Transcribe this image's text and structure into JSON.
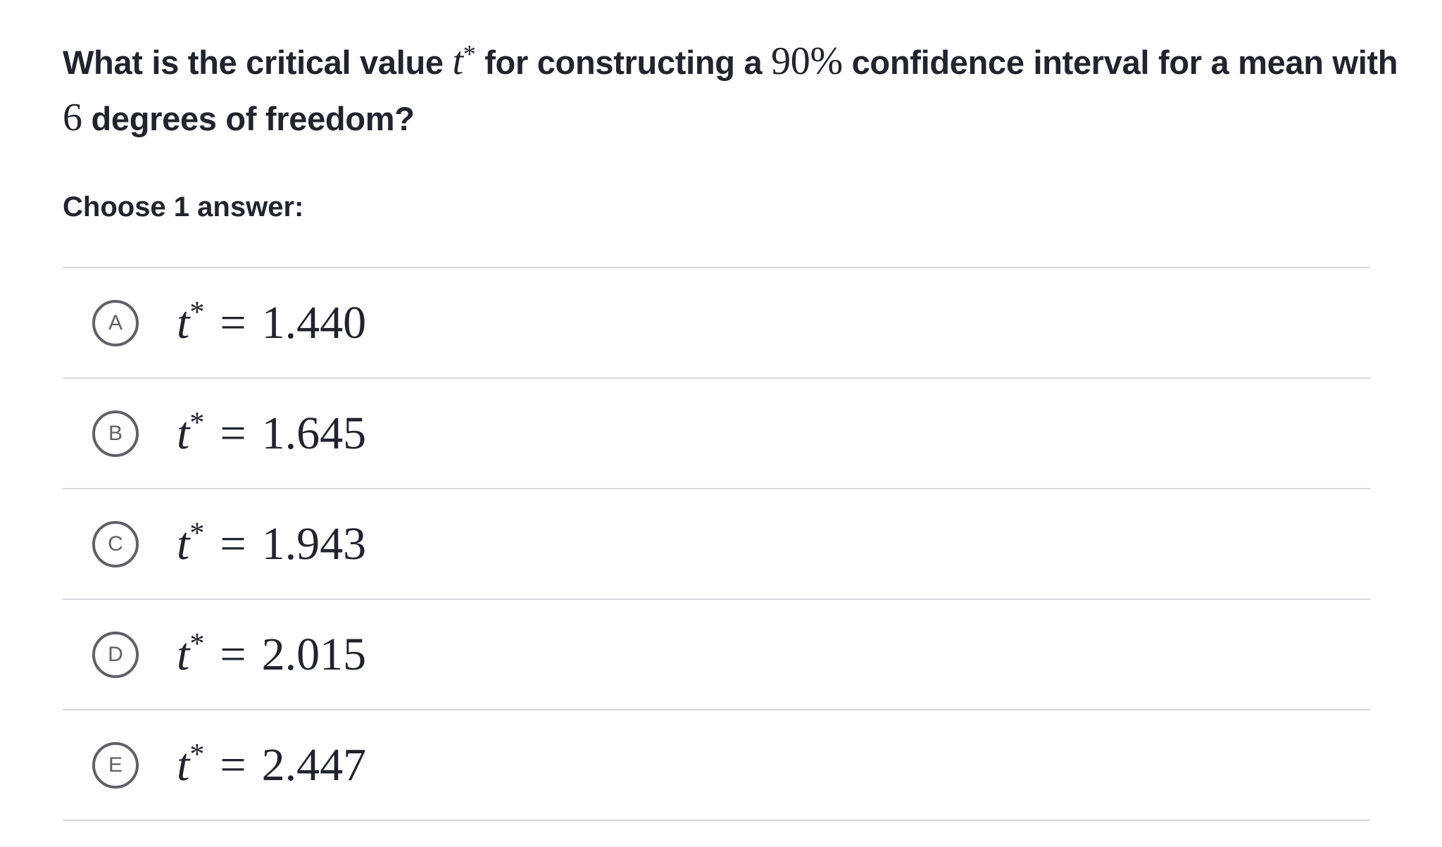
{
  "question": {
    "segments": [
      {
        "kind": "text",
        "content": "What is the critical value "
      },
      {
        "kind": "math",
        "content": "t"
      },
      {
        "kind": "sup",
        "content": "*"
      },
      {
        "kind": "text",
        "content": " for constructing a "
      },
      {
        "kind": "mathup",
        "content": "90%"
      },
      {
        "kind": "text",
        "content": " confidence interval for a mean with "
      },
      {
        "kind": "mathup",
        "content": "6"
      },
      {
        "kind": "text",
        "content": " degrees of freedom?"
      }
    ]
  },
  "prompt": "Choose 1 answer:",
  "choices": [
    {
      "letter": "A",
      "variable": "t",
      "superscript": "*",
      "operator": "=",
      "value": "1.440"
    },
    {
      "letter": "B",
      "variable": "t",
      "superscript": "*",
      "operator": "=",
      "value": "1.645"
    },
    {
      "letter": "C",
      "variable": "t",
      "superscript": "*",
      "operator": "=",
      "value": "1.943"
    },
    {
      "letter": "D",
      "variable": "t",
      "superscript": "*",
      "operator": "=",
      "value": "2.015"
    },
    {
      "letter": "E",
      "variable": "t",
      "superscript": "*",
      "operator": "=",
      "value": "2.447"
    }
  ]
}
